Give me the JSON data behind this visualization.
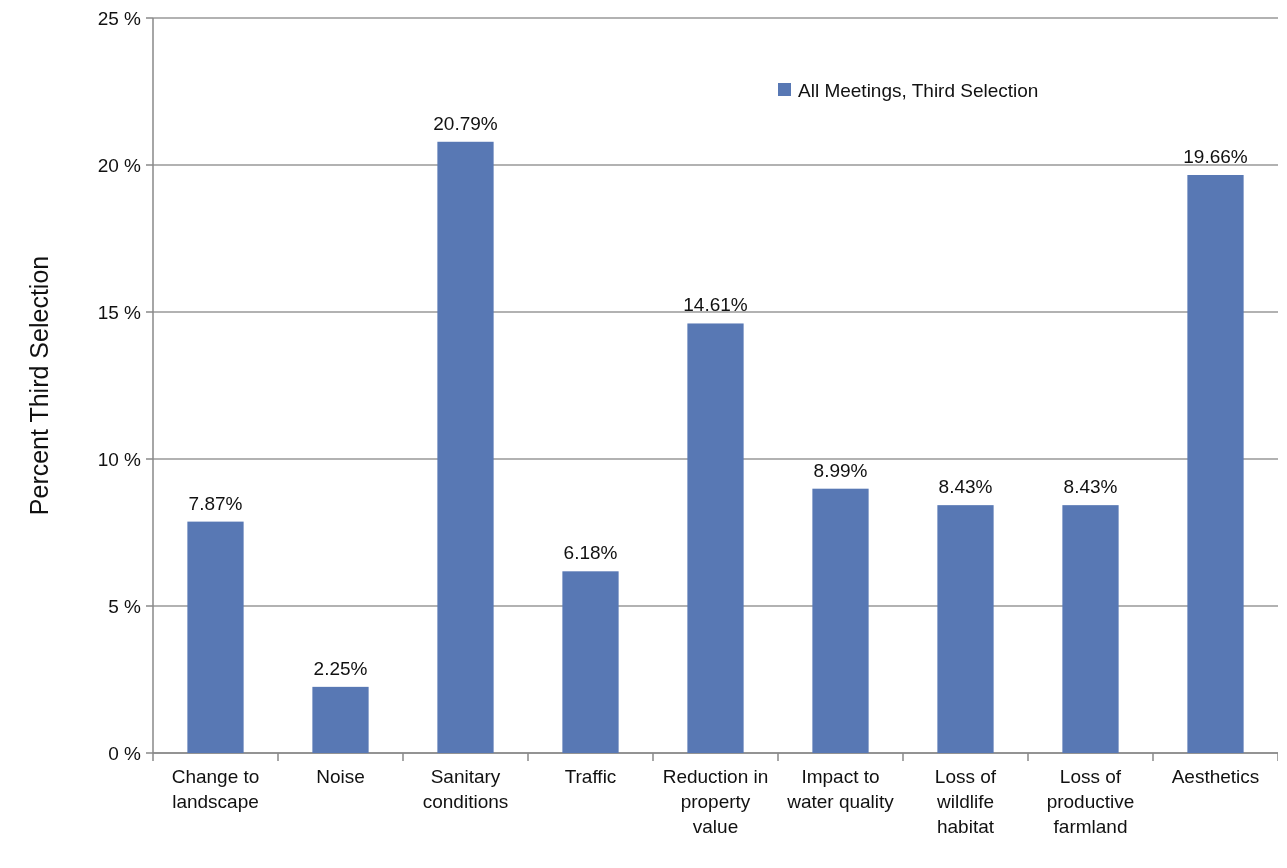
{
  "chart_data": {
    "type": "bar",
    "ylabel": "Percent Third Selection",
    "categories": [
      "Change to landscape",
      "Noise",
      "Sanitary conditions",
      "Traffic",
      "Reduction in property value",
      "Impact to water quality",
      "Loss of wildlife habitat",
      "Loss of productive farmland",
      "Aesthetics"
    ],
    "series": [
      {
        "name": "All Meetings, Third Selection",
        "color": "#5878b4",
        "values": [
          7.87,
          2.25,
          20.79,
          6.18,
          14.61,
          8.99,
          8.43,
          8.43,
          19.66
        ],
        "value_labels": [
          "7.87%",
          "2.25%",
          "20.79%",
          "6.18%",
          "14.61%",
          "8.99%",
          "8.43%",
          "8.43%",
          "19.66%"
        ]
      }
    ],
    "ylim": [
      0,
      25
    ],
    "yticks": [
      {
        "value": 0,
        "label": "0 %"
      },
      {
        "value": 5,
        "label": "5 %"
      },
      {
        "value": 10,
        "label": "10 %"
      },
      {
        "value": 15,
        "label": "15 %"
      },
      {
        "value": 20,
        "label": "20 %"
      },
      {
        "value": 25,
        "label": "25 %"
      }
    ],
    "grid": "y",
    "legend": "top right"
  }
}
